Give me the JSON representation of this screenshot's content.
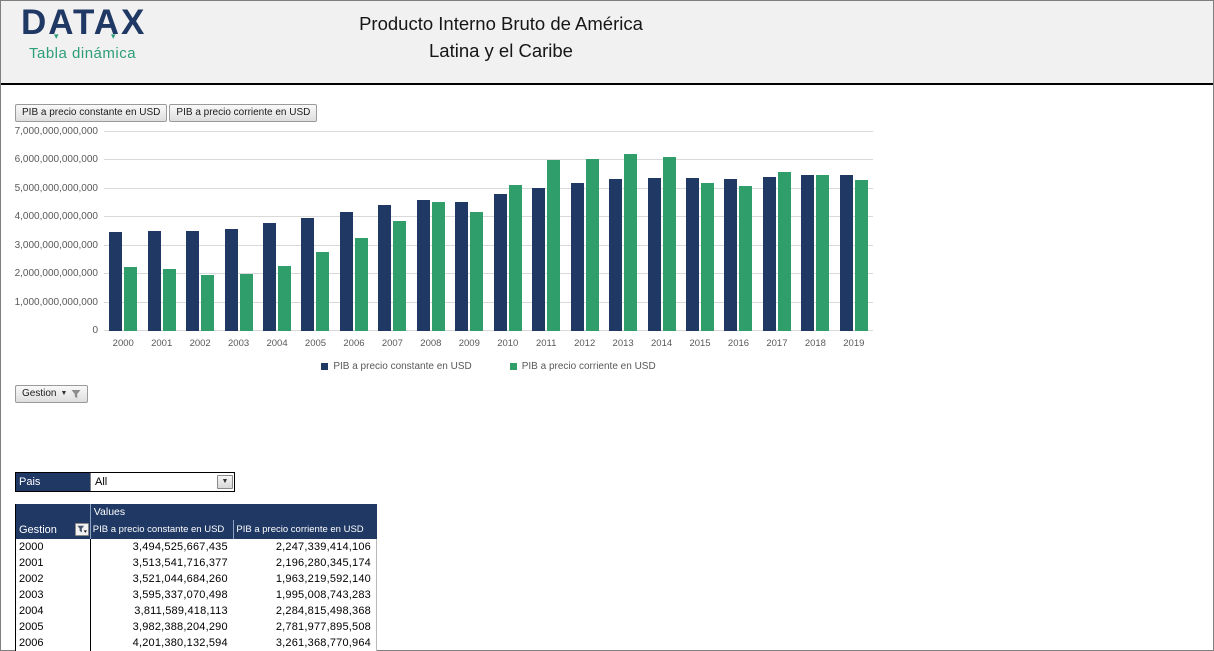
{
  "colors": {
    "navy": "#1F3864",
    "green": "#2F9E6B",
    "logo_green": "#2E9E78",
    "gridline": "#d9d9d9",
    "axis_text": "#595959"
  },
  "header": {
    "logo": "DATAX",
    "logo_subtitle": "Tabla dinámica",
    "title_line1": "Producto Interno Bruto de América",
    "title_line2": "Latina y el Caribe"
  },
  "chart": {
    "field_buttons": [
      "PIB a precio constante en USD",
      "PIB a precio corriente en USD"
    ],
    "gestion_button_label": "Gestion",
    "y_ticks": [
      "0",
      "1,000,000,000,000",
      "2,000,000,000,000",
      "3,000,000,000,000",
      "4,000,000,000,000",
      "5,000,000,000,000",
      "6,000,000,000,000",
      "7,000,000,000,000"
    ]
  },
  "chart_data": {
    "type": "bar",
    "title": "",
    "xlabel": "",
    "ylabel": "",
    "ylim": [
      0,
      7000000000000
    ],
    "grid": true,
    "legend_position": "bottom",
    "categories": [
      2000,
      2001,
      2002,
      2003,
      2004,
      2005,
      2006,
      2007,
      2008,
      2009,
      2010,
      2011,
      2012,
      2013,
      2014,
      2015,
      2016,
      2017,
      2018,
      2019
    ],
    "series": [
      {
        "name": "PIB a precio constante en USD",
        "color": "#1F3864",
        "values": [
          3494525667435,
          3513541716377,
          3521044684260,
          3595337070498,
          3811589418113,
          3982388204290,
          4201380132594,
          4450000000000,
          4620000000000,
          4540000000000,
          4820000000000,
          5040000000000,
          5190000000000,
          5330000000000,
          5390000000000,
          5400000000000,
          5350000000000,
          5420000000000,
          5480000000000,
          5500000000000
        ]
      },
      {
        "name": "PIB a precio corriente en USD",
        "color": "#2F9E6B",
        "values": [
          2247339414106,
          2196280345174,
          1963219592140,
          1995008743283,
          2284815498368,
          2781977895508,
          3261368770964,
          3880000000000,
          4530000000000,
          4180000000000,
          5130000000000,
          6010000000000,
          6060000000000,
          6210000000000,
          6120000000000,
          5220000000000,
          5090000000000,
          5610000000000,
          5480000000000,
          5310000000000
        ]
      }
    ]
  },
  "filters": {
    "pais_label": "Pais",
    "pais_value": "All"
  },
  "table": {
    "values_header": "Values",
    "gestion_header": "Gestion",
    "col_constante": "PIB a precio constante en USD",
    "col_corriente": "PIB a precio corriente en USD",
    "rows": [
      {
        "gestion": "2000",
        "constante": "3,494,525,667,435",
        "corriente": "2,247,339,414,106"
      },
      {
        "gestion": "2001",
        "constante": "3,513,541,716,377",
        "corriente": "2,196,280,345,174"
      },
      {
        "gestion": "2002",
        "constante": "3,521,044,684,260",
        "corriente": "1,963,219,592,140"
      },
      {
        "gestion": "2003",
        "constante": "3,595,337,070,498",
        "corriente": "1,995,008,743,283"
      },
      {
        "gestion": "2004",
        "constante": "3,811,589,418,113",
        "corriente": "2,284,815,498,368"
      },
      {
        "gestion": "2005",
        "constante": "3,982,388,204,290",
        "corriente": "2,781,977,895,508"
      },
      {
        "gestion": "2006",
        "constante": "4,201,380,132,594",
        "corriente": "3,261,368,770,964"
      }
    ]
  }
}
